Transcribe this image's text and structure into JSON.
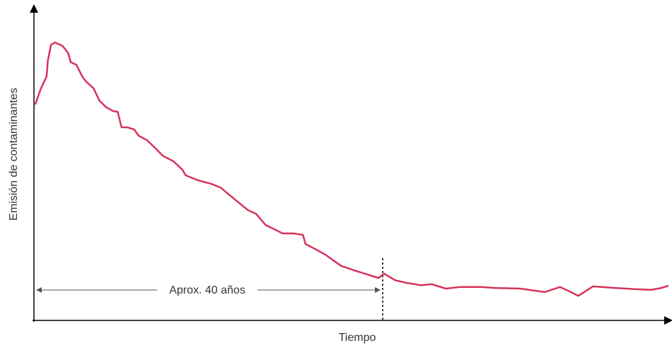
{
  "chart_data": {
    "type": "line",
    "y_label": "Emisión de contaminantes",
    "x_label": "Tiempo",
    "annotation": "Aprox. 40 años",
    "xlim": [
      0,
      100
    ],
    "ylim": [
      0,
      100
    ],
    "series": [
      {
        "color": "#d6335a",
        "x": [
          0.2,
          1.1,
          2.0,
          2.2,
          2.7,
          3.3,
          4.5,
          5.4,
          5.8,
          6.7,
          7.6,
          8.2,
          9.4,
          10.3,
          11.4,
          12.5,
          13.2,
          13.8,
          14.7,
          15.8,
          16.5,
          17.8,
          19.2,
          20.3,
          22.0,
          23.4,
          23.9,
          25.9,
          27.9,
          29.4,
          31.4,
          33.7,
          35.0,
          36.5,
          38.1,
          39.2,
          40.9,
          42.4,
          42.8,
          44.3,
          45.9,
          48.4,
          50.4,
          52.6,
          54.3,
          55.2,
          56.9,
          58.8,
          61.0,
          62.7,
          64.9,
          67.1,
          70.5,
          72.7,
          76.6,
          80.5,
          82.9,
          84.4,
          85.8,
          88.1,
          91.6,
          95.0,
          97.2,
          98.9,
          100
        ],
        "values": [
          69.2,
          74.4,
          78.2,
          83.4,
          88.4,
          89.1,
          88.0,
          85.7,
          82.8,
          81.9,
          78.2,
          76.6,
          74.4,
          70.5,
          68.3,
          67.1,
          66.9,
          61.9,
          61.9,
          61.2,
          59.2,
          57.8,
          55.1,
          52.8,
          51.0,
          48.3,
          46.5,
          44.9,
          43.8,
          42.6,
          39.2,
          35.4,
          34.2,
          30.6,
          29.0,
          27.9,
          27.9,
          27.4,
          24.5,
          22.9,
          21.1,
          17.5,
          16.1,
          14.7,
          13.6,
          15.0,
          12.9,
          12.0,
          11.3,
          11.6,
          10.2,
          10.7,
          10.7,
          10.4,
          10.2,
          9.1,
          10.7,
          9.3,
          7.9,
          10.9,
          10.4,
          10.0,
          9.8,
          10.4,
          11.1
        ]
      }
    ]
  }
}
